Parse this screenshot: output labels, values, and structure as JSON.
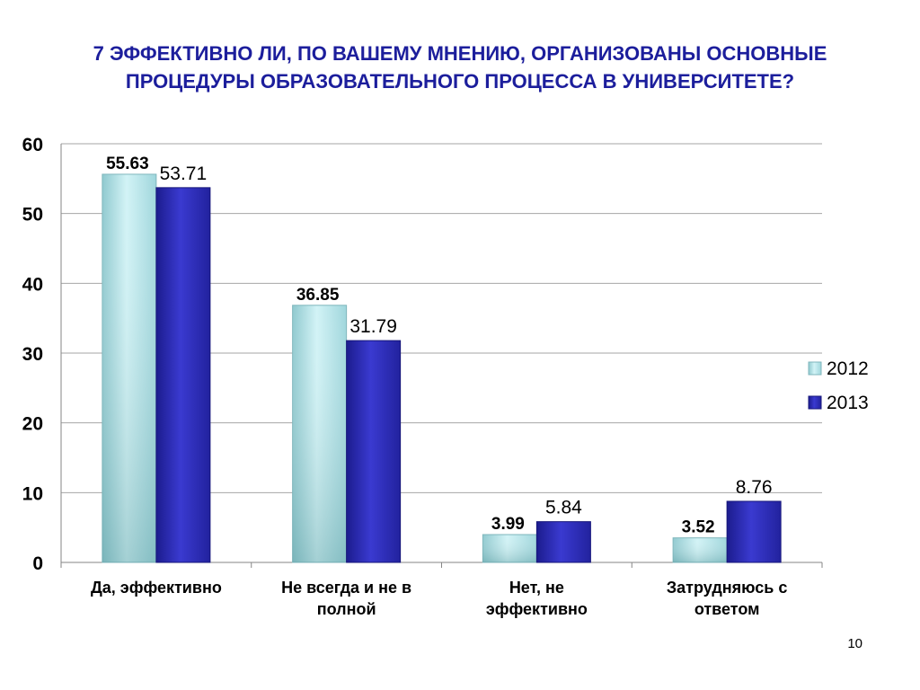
{
  "slide": {
    "title_line1": "7 ЭФФЕКТИВНО ЛИ, ПО ВАШЕМУ МНЕНИЮ, ОРГАНИЗОВАНЫ ОСНОВНЫЕ",
    "title_line2": "ПРОЦЕДУРЫ ОБРАЗОВАТЕЛЬНОГО ПРОЦЕССА В УНИВЕРСИТЕТЕ?",
    "page_number": "10"
  },
  "chart_data": {
    "type": "bar",
    "categories": [
      [
        "Да, эффективно"
      ],
      [
        "Не всегда и не в",
        "полной"
      ],
      [
        "Нет, не",
        "эффективно"
      ],
      [
        "Затрудняюсь с",
        "ответом"
      ]
    ],
    "series": [
      {
        "name": "2012",
        "values": [
          55.63,
          36.85,
          3.99,
          3.52
        ],
        "color": "#bfeaf0"
      },
      {
        "name": "2013",
        "values": [
          53.71,
          31.79,
          5.84,
          8.76
        ],
        "color": "#2a2ab0"
      }
    ],
    "value_labels": [
      [
        "55.63",
        "36.85",
        "3.99",
        "3.52"
      ],
      [
        "53.71",
        "31.79",
        "5.84",
        "8.76"
      ]
    ],
    "ylim": [
      0,
      60
    ],
    "yticks": [
      0,
      10,
      20,
      30,
      40,
      50,
      60
    ],
    "grid": true,
    "legend_position": "right"
  }
}
